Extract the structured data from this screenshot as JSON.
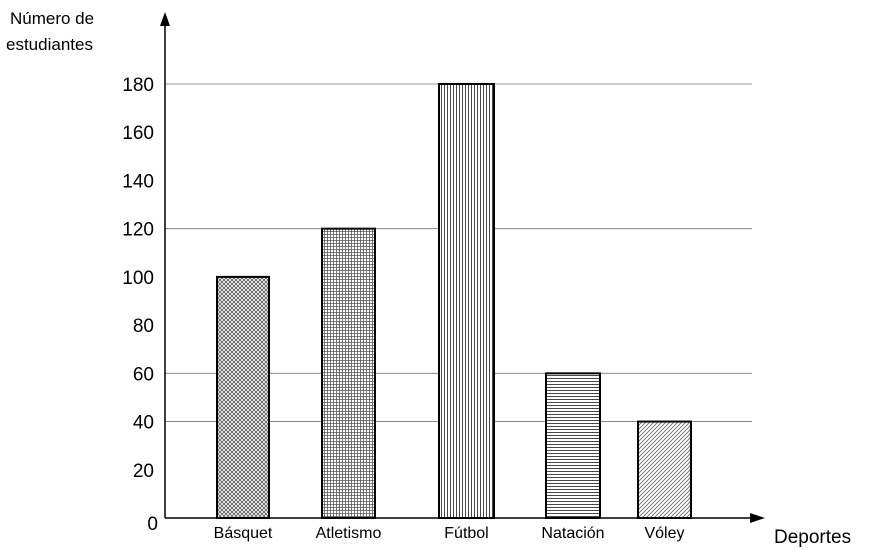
{
  "chart_data": {
    "type": "bar",
    "ylabel_lines": [
      "Número de",
      "estudiantes"
    ],
    "xlabel": "Deportes",
    "categories": [
      "Básquet",
      "Atletismo",
      "Fútbol",
      "Natación",
      "Vóley"
    ],
    "values": [
      100,
      120,
      180,
      60,
      40
    ],
    "yticks": [
      0,
      20,
      40,
      60,
      80,
      100,
      120,
      140,
      160,
      180
    ],
    "ylim": [
      0,
      180
    ],
    "grid_lines_at": [
      40,
      60,
      120,
      180
    ],
    "bar_patterns": [
      "crosshatch",
      "grid",
      "vertical-lines",
      "horizontal-lines",
      "diagonal-lines"
    ]
  }
}
